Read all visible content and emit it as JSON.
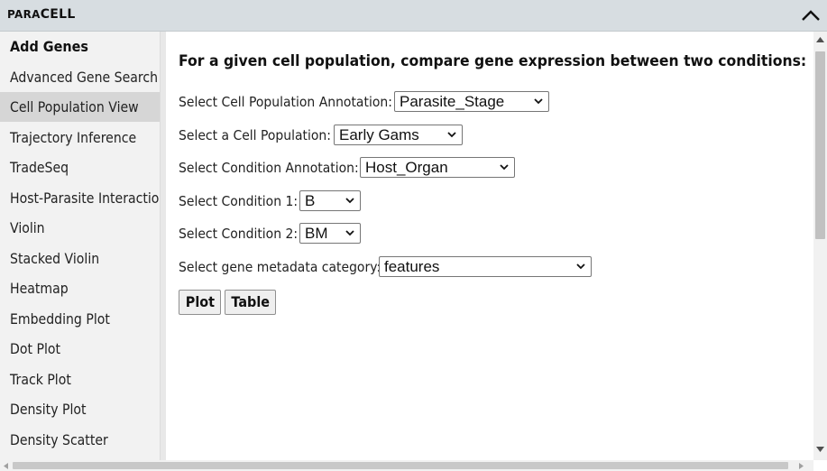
{
  "app": {
    "brand_prefix": "PARA",
    "brand_suffix": "CELL"
  },
  "sidebar": {
    "heading": "Add Genes",
    "items": [
      {
        "label": "Advanced Gene Search",
        "active": false
      },
      {
        "label": "Cell Population View",
        "active": true
      },
      {
        "label": "Trajectory Inference",
        "active": false
      },
      {
        "label": "TradeSeq",
        "active": false
      },
      {
        "label": "Host-Parasite Interaction",
        "active": false
      },
      {
        "label": "Violin",
        "active": false
      },
      {
        "label": "Stacked Violin",
        "active": false
      },
      {
        "label": "Heatmap",
        "active": false
      },
      {
        "label": "Embedding Plot",
        "active": false
      },
      {
        "label": "Dot Plot",
        "active": false
      },
      {
        "label": "Track Plot",
        "active": false
      },
      {
        "label": "Density Plot",
        "active": false
      },
      {
        "label": "Density Scatter",
        "active": false
      }
    ]
  },
  "main": {
    "heading": "For a given cell population, compare gene expression between two conditions:",
    "fields": {
      "cell_population_annotation": {
        "label": "Select Cell Population Annotation:",
        "value": "Parasite_Stage"
      },
      "cell_population": {
        "label": "Select a Cell Population:",
        "value": "Early Gams"
      },
      "condition_annotation": {
        "label": "Select Condition Annotation:",
        "value": "Host_Organ"
      },
      "condition_1": {
        "label": "Select Condition 1:",
        "value": "B"
      },
      "condition_2": {
        "label": "Select Condition 2:",
        "value": "BM"
      },
      "gene_metadata_category": {
        "label": "Select gene metadata category:",
        "value": "features"
      }
    },
    "buttons": {
      "plot": "Plot",
      "table": "Table"
    }
  },
  "icons": {
    "collapse": "chevron-up-icon",
    "dropdown": "chevron-down-icon",
    "scroll_up": "scroll-up-arrow-icon",
    "scroll_down": "scroll-down-arrow-icon",
    "scroll_left": "scroll-left-arrow-icon",
    "scroll_right": "scroll-right-arrow-icon"
  },
  "colors": {
    "titlebar": "#d7dde1",
    "sidebar": "#f2f2f2",
    "active_item": "#d6d6d6"
  }
}
